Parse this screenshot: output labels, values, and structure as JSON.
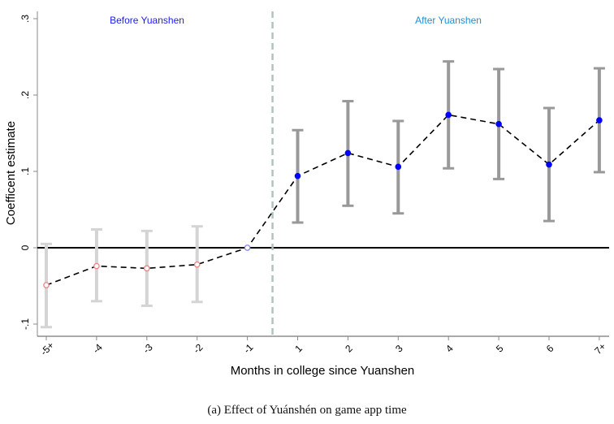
{
  "chart_data": {
    "type": "line",
    "xlabel": "Months in college since Yuanshen",
    "ylabel": "Coefficent estimate",
    "categories": [
      "-5+",
      "-4",
      "-3",
      "-2",
      "-1",
      "1",
      "2",
      "3",
      "4",
      "5",
      "6",
      "7+"
    ],
    "estimates": [
      -0.049,
      -0.024,
      -0.027,
      -0.022,
      0.0,
      0.094,
      0.124,
      0.106,
      0.174,
      0.162,
      0.109,
      0.167
    ],
    "ci_upper": [
      0.005,
      0.024,
      0.022,
      0.028,
      null,
      0.154,
      0.192,
      0.166,
      0.244,
      0.234,
      0.183,
      0.235
    ],
    "ci_lower": [
      -0.104,
      -0.07,
      -0.076,
      -0.071,
      null,
      0.033,
      0.055,
      0.045,
      0.104,
      0.09,
      0.035,
      0.099
    ],
    "ylim": [
      -0.115,
      0.31
    ],
    "yticks": [
      -0.1,
      0,
      0.1,
      0.2,
      0.3
    ],
    "ytick_labels": [
      "-.1",
      "0",
      ".1",
      ".2",
      ".3"
    ],
    "reference_line_y": 0,
    "event_line_between": [
      "-1",
      "1"
    ],
    "annotations": {
      "before": "Before Yuanshen",
      "after": "After Yuanshen"
    },
    "colors": {
      "pre_ci": "#d4d4d4",
      "post_ci": "#999999",
      "pre_marker": "#f08080",
      "baseline_marker": "#8888ff",
      "post_marker": "#0000ff",
      "before_label": "#1a1aff",
      "after_label": "#1e90d0",
      "event_line": "#b0c4bc"
    }
  },
  "caption": "(a) Effect of Yuánshén on game app time"
}
